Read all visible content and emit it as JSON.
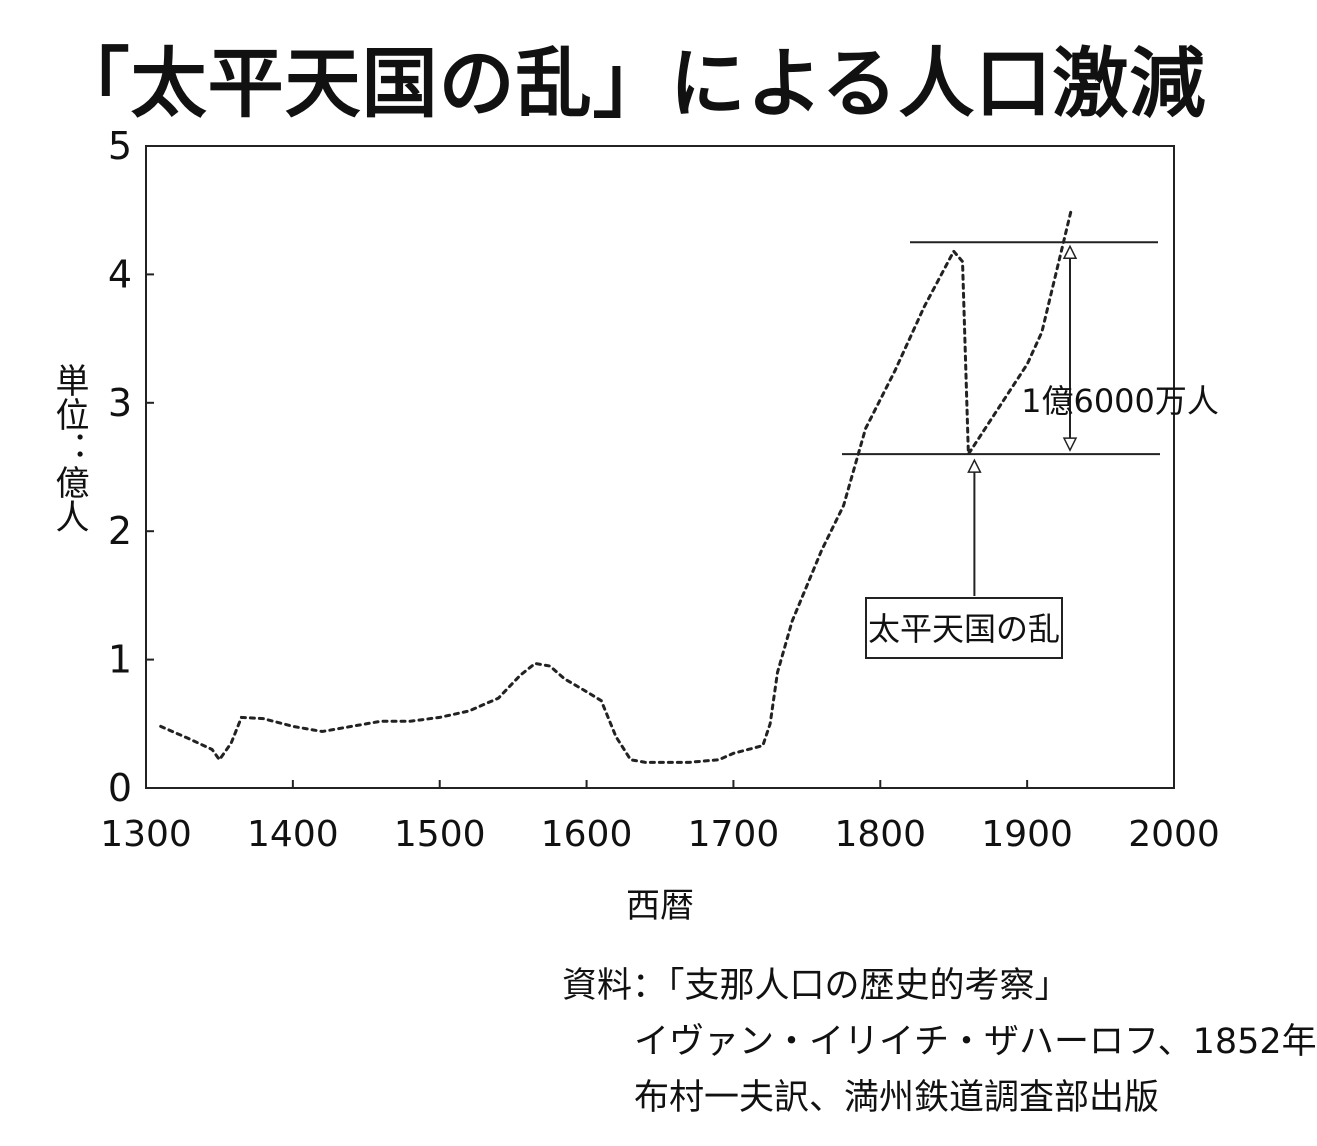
{
  "chart_data": {
    "type": "line",
    "title": "「太平天国の乱」による人口激減",
    "ylabel": "単位：億人",
    "xlabel": "西暦",
    "xlim": [
      1300,
      2000
    ],
    "ylim": [
      0,
      5
    ],
    "x_ticks": [
      "1300",
      "1400",
      "1500",
      "1600",
      "1700",
      "1800",
      "1900",
      "2000"
    ],
    "y_ticks": [
      "0",
      "1",
      "2",
      "3",
      "4",
      "5"
    ],
    "grid": false,
    "series": [
      {
        "style": "dotted",
        "color": "#222222",
        "x": [
          1310,
          1330,
          1345,
          1350,
          1358,
          1365,
          1380,
          1400,
          1420,
          1440,
          1460,
          1480,
          1500,
          1520,
          1540,
          1555,
          1565,
          1575,
          1585,
          1600,
          1610,
          1620,
          1630,
          1640,
          1650,
          1670,
          1690,
          1700,
          1710,
          1720,
          1725,
          1730,
          1740,
          1760,
          1775,
          1790,
          1810,
          1830,
          1850,
          1856,
          1860,
          1880,
          1900,
          1910,
          1930
        ],
        "y": [
          0.48,
          0.38,
          0.3,
          0.22,
          0.35,
          0.55,
          0.54,
          0.48,
          0.44,
          0.48,
          0.52,
          0.52,
          0.55,
          0.6,
          0.7,
          0.88,
          0.97,
          0.95,
          0.85,
          0.75,
          0.68,
          0.4,
          0.22,
          0.2,
          0.2,
          0.2,
          0.22,
          0.27,
          0.3,
          0.33,
          0.5,
          0.9,
          1.3,
          1.85,
          2.2,
          2.8,
          3.25,
          3.75,
          4.18,
          4.1,
          2.6,
          2.95,
          3.3,
          3.55,
          4.5
        ]
      }
    ],
    "annotations": {
      "upper_line_y": 4.25,
      "lower_line_y": 2.6,
      "difference_label": "1億6000万人",
      "event_label": "太平天国の乱",
      "event_x": 1860
    }
  },
  "source": {
    "line1": "資料：「支那人口の歴史的考察」",
    "line2": "イヴァン・イリイチ・ザハーロフ、1852年",
    "line3": "布村一夫訳、満州鉄道調査部出版"
  }
}
